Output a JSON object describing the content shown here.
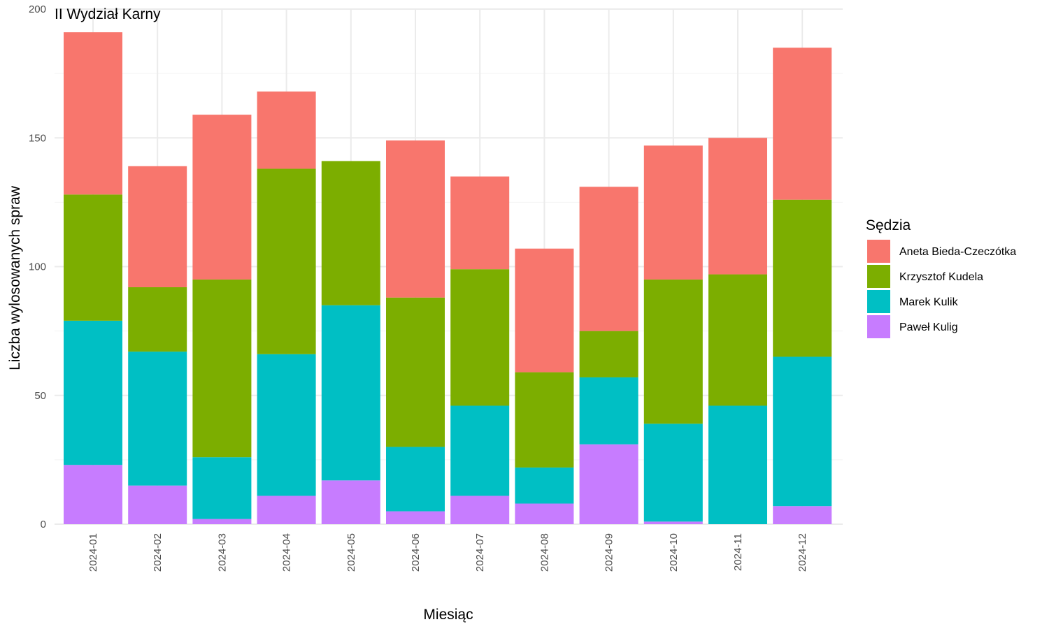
{
  "chart_data": {
    "type": "bar",
    "stacked": true,
    "title": "II Wydział Karny",
    "xlabel": "Miesiąc",
    "ylabel": "Liczba wylosowanych spraw",
    "ylim": [
      0,
      200
    ],
    "yticks": [
      0,
      50,
      100,
      150,
      200
    ],
    "grid": true,
    "legend_position": "right",
    "legend_title": "Sędzia",
    "categories": [
      "2024-01",
      "2024-02",
      "2024-03",
      "2024-04",
      "2024-05",
      "2024-06",
      "2024-07",
      "2024-08",
      "2024-09",
      "2024-10",
      "2024-11",
      "2024-12"
    ],
    "series": [
      {
        "name": "Aneta Bieda-Czeczótka",
        "color": "#F8766D",
        "values": [
          63,
          47,
          64,
          30,
          0,
          61,
          36,
          48,
          56,
          52,
          53,
          59
        ]
      },
      {
        "name": "Krzysztof Kudela",
        "color": "#7CAE00",
        "values": [
          49,
          25,
          69,
          72,
          56,
          58,
          53,
          37,
          18,
          56,
          51,
          61
        ]
      },
      {
        "name": "Marek Kulik",
        "color": "#00BFC4",
        "values": [
          56,
          52,
          24,
          55,
          68,
          25,
          35,
          14,
          26,
          38,
          46,
          58
        ]
      },
      {
        "name": "Paweł Kulig",
        "color": "#C77CFF",
        "values": [
          23,
          15,
          2,
          11,
          17,
          5,
          11,
          8,
          31,
          1,
          0,
          7
        ]
      }
    ]
  }
}
